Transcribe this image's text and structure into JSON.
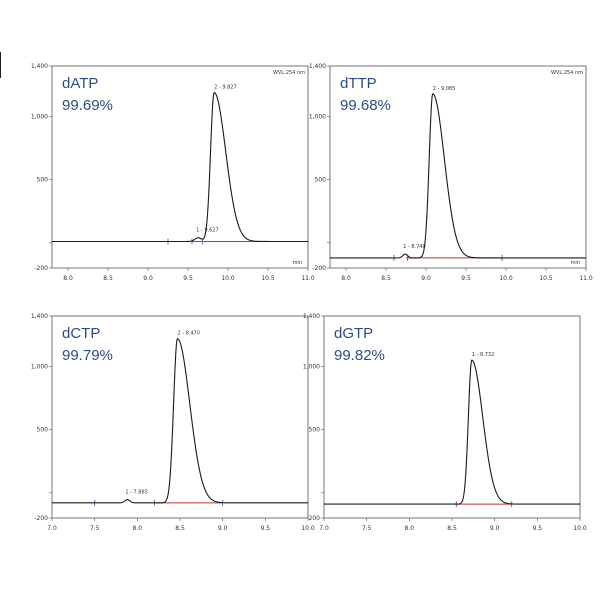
{
  "chart_data": [
    {
      "type": "line",
      "compound": "dATP",
      "purity": "99.69%",
      "header_label": "WVL:254 nm",
      "x_unit": "min",
      "xlim": [
        7.8,
        11.0
      ],
      "ylim": [
        -200,
        1400
      ],
      "x_ticks": [
        "8.0",
        "8.5",
        "9.0",
        "9.5",
        "10.0",
        "10.5",
        "11.0"
      ],
      "y_ticks": [
        "1,400",
        "1,000",
        "500",
        "",
        "-200"
      ],
      "baseline": 10,
      "peaks": [
        {
          "label": "1 - 9.627",
          "rt": 9.627,
          "height": 30,
          "width": 0.04,
          "tail": 1.0
        },
        {
          "label": "2 - 9.827",
          "rt": 9.827,
          "height": 1180,
          "width": 0.045,
          "tail": 3.2
        }
      ],
      "integration": [
        9.55,
        11.0
      ],
      "markers": [
        9.25,
        9.55,
        9.68,
        11.0
      ]
    },
    {
      "type": "line",
      "compound": "dTTP",
      "purity": "99.68%",
      "header_label": "WVL:254 nm",
      "x_unit": "min",
      "xlim": [
        7.8,
        11.0
      ],
      "ylim": [
        -200,
        1400
      ],
      "x_ticks": [
        "8.0",
        "8.5",
        "9.0",
        "9.5",
        "10.0",
        "10.5",
        "11.0"
      ],
      "y_ticks": [
        "1,400",
        "1,000",
        "500",
        "",
        "-200"
      ],
      "baseline": -120,
      "peaks": [
        {
          "label": "1 - 8.740",
          "rt": 8.74,
          "height": 30,
          "width": 0.03,
          "tail": 1.0
        },
        {
          "label": "2 - 9.085",
          "rt": 9.085,
          "height": 1300,
          "width": 0.045,
          "tail": 3.2
        }
      ],
      "integration": [
        8.75,
        9.95
      ],
      "markers": [
        8.6,
        8.77,
        9.95
      ]
    },
    {
      "type": "line",
      "compound": "dCTP",
      "purity": "99.79%",
      "header_label": "",
      "x_unit": "",
      "xlim": [
        7.0,
        10.0
      ],
      "ylim": [
        -200,
        1400
      ],
      "x_ticks": [
        "7.0",
        "7.5",
        "8.0",
        "8.5",
        "9.0",
        "9.5",
        "10.0"
      ],
      "y_ticks": [
        "1,400",
        "1,000",
        "500",
        "",
        "-200"
      ],
      "baseline": -80,
      "peaks": [
        {
          "label": "1 - 7.883",
          "rt": 7.883,
          "height": 25,
          "width": 0.03,
          "tail": 1.0
        },
        {
          "label": "2 - 8.470",
          "rt": 8.47,
          "height": 1300,
          "width": 0.045,
          "tail": 3.2
        }
      ],
      "integration": [
        8.2,
        9.0
      ],
      "markers": [
        7.5,
        8.2,
        9.0
      ]
    },
    {
      "type": "line",
      "compound": "dGTP",
      "purity": "99.82%",
      "header_label": "",
      "x_unit": "",
      "xlim": [
        7.0,
        10.0
      ],
      "ylim": [
        -200,
        1400
      ],
      "x_ticks": [
        "7.0",
        "7.5",
        "8.0",
        "8.5",
        "9.0",
        "9.5",
        "10.0"
      ],
      "y_ticks": [
        "1,400",
        "1,000",
        "500",
        "",
        "-200"
      ],
      "baseline": -90,
      "peaks": [
        {
          "label": "1 - 8.732",
          "rt": 8.732,
          "height": 1140,
          "width": 0.04,
          "tail": 3.2
        }
      ],
      "integration": [
        8.55,
        9.2
      ],
      "markers": [
        8.55,
        9.2
      ]
    }
  ]
}
